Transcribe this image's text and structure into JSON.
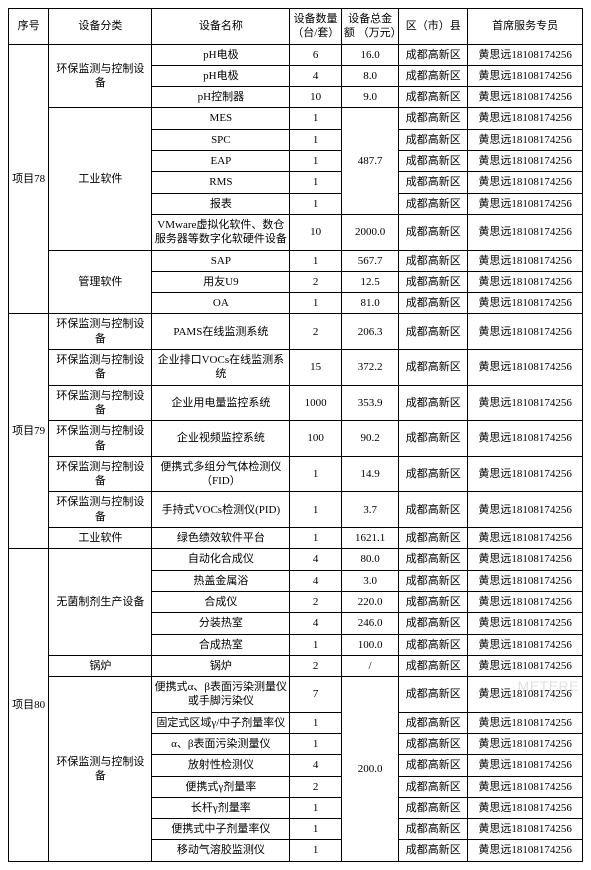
{
  "headers": {
    "seq": "序号",
    "cat": "设备分类",
    "name": "设备名称",
    "qty": "设备数量\n（台/套）",
    "amt": "设备总金额\n（万元）",
    "dist": "区（市）县",
    "staff": "首席服务专员"
  },
  "district": "成都高新区",
  "staff": "黄思远18108174256",
  "watermark": "METERE",
  "rows": [
    {
      "seq": "项目78",
      "seqRowspan": 12,
      "cat": "环保监测与控制设备",
      "catRowspan": 3,
      "name": "pH电极",
      "qty": "6",
      "amt": "16.0"
    },
    {
      "name": "pH电极",
      "qty": "4",
      "amt": "8.0"
    },
    {
      "name": "pH控制器",
      "qty": "10",
      "amt": "9.0"
    },
    {
      "cat": "工业软件",
      "catRowspan": 6,
      "name": "MES",
      "qty": "1",
      "amt": "487.7",
      "amtRowspan": 5
    },
    {
      "name": "SPC",
      "qty": "1"
    },
    {
      "name": "EAP",
      "qty": "1"
    },
    {
      "name": "RMS",
      "qty": "1"
    },
    {
      "name": "报表",
      "qty": "1"
    },
    {
      "name": "VMware虚拟化软件、数仓服务器等数字化软硬件设备",
      "qty": "10",
      "amt": "2000.0"
    },
    {
      "cat": "管理软件",
      "catRowspan": 3,
      "name": "SAP",
      "qty": "1",
      "amt": "567.7"
    },
    {
      "name": "用友U9",
      "qty": "2",
      "amt": "12.5"
    },
    {
      "name": "OA",
      "qty": "1",
      "amt": "81.0"
    },
    {
      "seq": "项目79",
      "seqRowspan": 7,
      "cat": "环保监测与控制设备",
      "name": "PAMS在线监测系统",
      "qty": "2",
      "amt": "206.3"
    },
    {
      "cat": "环保监测与控制设备",
      "name": "企业排口VOCs在线监测系统",
      "qty": "15",
      "amt": "372.2"
    },
    {
      "cat": "环保监测与控制设备",
      "name": "企业用电量监控系统",
      "qty": "1000",
      "amt": "353.9"
    },
    {
      "cat": "环保监测与控制设备",
      "name": "企业视频监控系统",
      "qty": "100",
      "amt": "90.2"
    },
    {
      "cat": "环保监测与控制设备",
      "name": "便携式多组分气体检测仪（FID）",
      "qty": "1",
      "amt": "14.9"
    },
    {
      "cat": "环保监测与控制设备",
      "name": "手持式VOCs检测仪(PID)",
      "qty": "1",
      "amt": "3.7"
    },
    {
      "cat": "工业软件",
      "name": "绿色绩效软件平台",
      "qty": "1",
      "amt": "1621.1"
    },
    {
      "seq": "项目80",
      "seqRowspan": 14,
      "cat": "无菌制剂生产设备",
      "catRowspan": 5,
      "name": "自动化合成仪",
      "qty": "4",
      "amt": "80.0"
    },
    {
      "name": "热盖金属浴",
      "qty": "4",
      "amt": "3.0"
    },
    {
      "name": "合成仪",
      "qty": "2",
      "amt": "220.0"
    },
    {
      "name": "分装热室",
      "qty": "4",
      "amt": "246.0"
    },
    {
      "name": "合成热室",
      "qty": "1",
      "amt": "100.0"
    },
    {
      "cat": "锅炉",
      "name": "锅炉",
      "qty": "2",
      "amt": "/"
    },
    {
      "cat": "环保监测与控制设备",
      "catRowspan": 8,
      "name": "便携式α、β表面污染测量仪或手脚污染仪",
      "qty": "7",
      "amt": "200.0",
      "amtRowspan": 8
    },
    {
      "name": "固定式区域γ/中子剂量率仪",
      "qty": "1"
    },
    {
      "name": "α、β表面污染测量仪",
      "qty": "1"
    },
    {
      "name": "放射性检测仪",
      "qty": "4"
    },
    {
      "name": "便携式γ剂量率",
      "qty": "2"
    },
    {
      "name": "长杆γ剂量率",
      "qty": "1"
    },
    {
      "name": "便携式中子剂量率仪",
      "qty": "1"
    },
    {
      "name": "移动气溶胶监测仪",
      "qty": "1"
    }
  ]
}
